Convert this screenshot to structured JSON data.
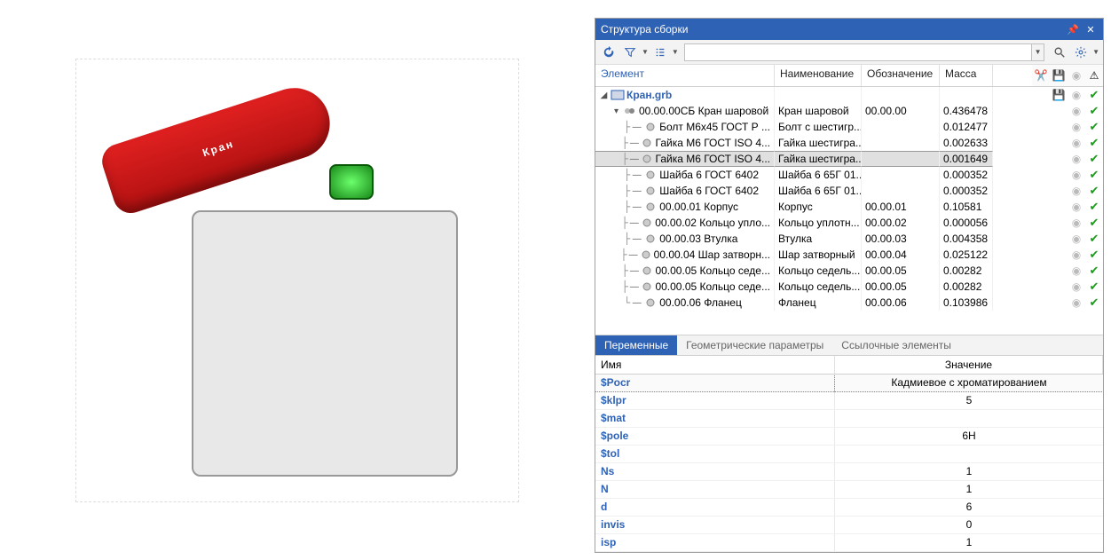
{
  "colors": {
    "title_bar": "#2e62b5",
    "selected_row": "#e0e0e0",
    "link_text": "#2e62b5",
    "check_icon": "#1a9a1a",
    "handle_red_top": "#e02020",
    "handle_red_bot": "#b01010",
    "nut_green": "#1a8a1a"
  },
  "viewport": {
    "handle_text": "Кран"
  },
  "panel": {
    "title": "Структура сборки"
  },
  "search": {
    "placeholder": ""
  },
  "columns": {
    "element": "Элемент",
    "name": "Наименование",
    "designation": "Обозначение",
    "mass": "Масса"
  },
  "root": {
    "label": "Кран.grb"
  },
  "assembly": {
    "label": "00.00.00СБ Кран шаровой",
    "name": "Кран шаровой",
    "designation": "00.00.00",
    "mass": "0.436478"
  },
  "rows": [
    {
      "label": "Болт М6х45 ГОСТ Р ...",
      "name": "Болт с шестигр...",
      "designation": "",
      "mass": "0.012477",
      "selected": false
    },
    {
      "label": "Гайка М6 ГОСТ ISO 4...",
      "name": "Гайка шестигра...",
      "designation": "",
      "mass": "0.002633",
      "selected": false
    },
    {
      "label": "Гайка М6 ГОСТ ISO 4...",
      "name": "Гайка шестигра...",
      "designation": "",
      "mass": "0.001649",
      "selected": true
    },
    {
      "label": "Шайба 6 ГОСТ 6402",
      "name": "Шайба 6 65Г 01...",
      "designation": "",
      "mass": "0.000352",
      "selected": false
    },
    {
      "label": "Шайба 6 ГОСТ 6402",
      "name": "Шайба 6 65Г 01...",
      "designation": "",
      "mass": "0.000352",
      "selected": false
    },
    {
      "label": "00.00.01 Корпус",
      "name": "Корпус",
      "designation": "00.00.01",
      "mass": "0.10581",
      "selected": false
    },
    {
      "label": "00.00.02 Кольцо упло...",
      "name": "Кольцо уплотн...",
      "designation": "00.00.02",
      "mass": "0.000056",
      "selected": false
    },
    {
      "label": "00.00.03 Втулка",
      "name": "Втулка",
      "designation": "00.00.03",
      "mass": "0.004358",
      "selected": false
    },
    {
      "label": "00.00.04 Шар затворн...",
      "name": "Шар затворный",
      "designation": "00.00.04",
      "mass": "0.025122",
      "selected": false
    },
    {
      "label": "00.00.05 Кольцо седе...",
      "name": "Кольцо седель...",
      "designation": "00.00.05",
      "mass": "0.00282",
      "selected": false
    },
    {
      "label": "00.00.05 Кольцо седе...",
      "name": "Кольцо седель...",
      "designation": "00.00.05",
      "mass": "0.00282",
      "selected": false
    },
    {
      "label": "00.00.06 Фланец",
      "name": "Фланец",
      "designation": "00.00.06",
      "mass": "0.103986",
      "selected": false
    }
  ],
  "tabs": {
    "variables": "Переменные",
    "geom": "Геометрические параметры",
    "refs": "Ссылочные элементы"
  },
  "var_columns": {
    "name": "Имя",
    "value": "Значение"
  },
  "variables": [
    {
      "name": "$Pocr",
      "value": "Кадмиевое с хроматированием",
      "selected": true
    },
    {
      "name": "$klpr",
      "value": "5",
      "selected": false
    },
    {
      "name": "$mat",
      "value": "",
      "selected": false
    },
    {
      "name": "$pole",
      "value": "6H",
      "selected": false
    },
    {
      "name": "$tol",
      "value": "",
      "selected": false
    },
    {
      "name": "Ns",
      "value": "1",
      "selected": false
    },
    {
      "name": "N",
      "value": "1",
      "selected": false
    },
    {
      "name": "d",
      "value": "6",
      "selected": false
    },
    {
      "name": "invis",
      "value": "0",
      "selected": false
    },
    {
      "name": "isp",
      "value": "1",
      "selected": false
    }
  ]
}
